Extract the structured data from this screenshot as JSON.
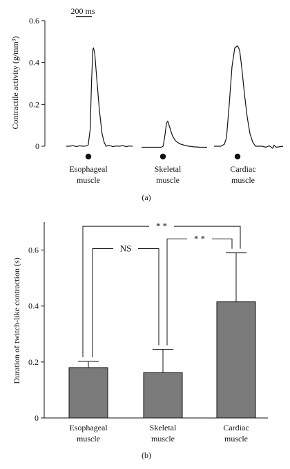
{
  "chart_data": [
    {
      "type": "line",
      "panel_label": "(a)",
      "ylabel": "Contractile activity (g/mm³)",
      "ylim": [
        0,
        0.6
      ],
      "yticks": [
        0,
        0.2,
        0.4,
        0.6
      ],
      "ytick_labels": [
        "0",
        "0.2",
        "0.4",
        "0.6"
      ],
      "scale_bar_label": "200 ms",
      "series": [
        {
          "label_lines": [
            "Esophageal",
            "muscle"
          ],
          "peak": 0.47,
          "baseline": 0.0,
          "trace": [
            [
              0,
              0
            ],
            [
              0.05,
              0.0
            ],
            [
              0.1,
              0.003
            ],
            [
              0.15,
              -0.002
            ],
            [
              0.2,
              0.002
            ],
            [
              0.25,
              0.0
            ],
            [
              0.3,
              0.001
            ],
            [
              0.33,
              0.005
            ],
            [
              0.36,
              0.08
            ],
            [
              0.38,
              0.3
            ],
            [
              0.4,
              0.46
            ],
            [
              0.41,
              0.47
            ],
            [
              0.43,
              0.44
            ],
            [
              0.46,
              0.32
            ],
            [
              0.5,
              0.17
            ],
            [
              0.54,
              0.06
            ],
            [
              0.57,
              0.02
            ],
            [
              0.6,
              0.0
            ],
            [
              0.65,
              0.004
            ],
            [
              0.7,
              -0.002
            ],
            [
              0.75,
              0.001
            ],
            [
              0.8,
              0.0
            ],
            [
              0.85,
              0.003
            ],
            [
              0.9,
              -0.002
            ],
            [
              0.95,
              0.001
            ],
            [
              1,
              0
            ]
          ]
        },
        {
          "label_lines": [
            "Skeletal",
            "muscle"
          ],
          "peak": 0.12,
          "baseline": -0.005,
          "trace": [
            [
              0,
              -0.005
            ],
            [
              0.1,
              -0.005
            ],
            [
              0.2,
              -0.005
            ],
            [
              0.3,
              -0.005
            ],
            [
              0.33,
              0.0
            ],
            [
              0.36,
              0.06
            ],
            [
              0.38,
              0.11
            ],
            [
              0.4,
              0.12
            ],
            [
              0.43,
              0.09
            ],
            [
              0.47,
              0.05
            ],
            [
              0.52,
              0.025
            ],
            [
              0.58,
              0.012
            ],
            [
              0.65,
              0.005
            ],
            [
              0.72,
              0.0
            ],
            [
              0.8,
              -0.003
            ],
            [
              0.9,
              -0.005
            ],
            [
              1,
              -0.005
            ]
          ]
        },
        {
          "label_lines": [
            "Cardiac",
            "muscle"
          ],
          "peak": 0.48,
          "baseline": 0.0,
          "trace": [
            [
              0,
              0
            ],
            [
              0.05,
              0.0
            ],
            [
              0.1,
              0.0
            ],
            [
              0.15,
              0.01
            ],
            [
              0.18,
              0.04
            ],
            [
              0.22,
              0.2
            ],
            [
              0.26,
              0.38
            ],
            [
              0.3,
              0.47
            ],
            [
              0.34,
              0.48
            ],
            [
              0.37,
              0.46
            ],
            [
              0.4,
              0.38
            ],
            [
              0.44,
              0.25
            ],
            [
              0.48,
              0.14
            ],
            [
              0.52,
              0.06
            ],
            [
              0.56,
              0.02
            ],
            [
              0.6,
              0.0
            ],
            [
              0.7,
              0.0
            ],
            [
              0.75,
              -0.005
            ],
            [
              0.8,
              0.002
            ],
            [
              0.85,
              -0.01
            ],
            [
              0.87,
              0.005
            ],
            [
              0.9,
              -0.005
            ],
            [
              1,
              0
            ]
          ]
        }
      ]
    },
    {
      "type": "bar",
      "panel_label": "(b)",
      "ylabel": "Duration of twitch-like contraction (s)",
      "ylim": [
        0,
        0.7
      ],
      "yticks": [
        0,
        0.2,
        0.4,
        0.6
      ],
      "ytick_labels": [
        "0",
        "0.2",
        "0.4",
        "0.6"
      ],
      "categories": [
        [
          "Esophageal",
          "muscle"
        ],
        [
          "Skeletal",
          "muscle"
        ],
        [
          "Cardiac",
          "muscle"
        ]
      ],
      "values": [
        0.18,
        0.162,
        0.415
      ],
      "errors": [
        0.022,
        0.083,
        0.175
      ],
      "bar_color": "#7a7a7a",
      "significance": [
        {
          "from": 0,
          "to": 1,
          "label": "NS",
          "level": 0.605
        },
        {
          "from": 1,
          "to": 2,
          "label": "* *",
          "level": 0.64
        },
        {
          "from": 0,
          "to": 2,
          "label": "* *",
          "level": 0.685
        }
      ]
    }
  ]
}
